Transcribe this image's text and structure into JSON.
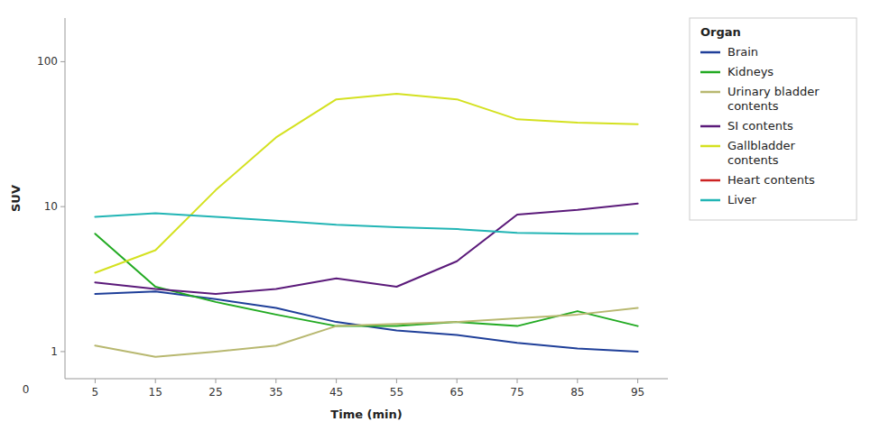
{
  "chart_data": {
    "type": "line",
    "x": [
      5,
      15,
      25,
      35,
      45,
      55,
      65,
      75,
      85,
      95
    ],
    "series": [
      {
        "name": "Brain",
        "color": "#1f3f99",
        "values": [
          2.5,
          2.6,
          2.3,
          2.0,
          1.6,
          1.4,
          1.3,
          1.15,
          1.05,
          1.0
        ]
      },
      {
        "name": "Kidneys",
        "color": "#22aa22",
        "values": [
          6.5,
          2.8,
          2.2,
          1.8,
          1.5,
          1.5,
          1.6,
          1.5,
          1.9,
          1.5
        ]
      },
      {
        "name": "Urinary bladder\ncontents",
        "color": "#b8b870",
        "values": [
          1.1,
          0.92,
          1.0,
          1.1,
          1.5,
          1.55,
          1.6,
          1.7,
          1.8,
          2.0
        ]
      },
      {
        "name": "SI contents",
        "color": "#5b1a7a",
        "values": [
          3.0,
          2.7,
          2.5,
          2.7,
          3.2,
          2.8,
          4.2,
          8.8,
          9.5,
          10.5
        ]
      },
      {
        "name": "Gallbladder\ncontents",
        "color": "#d4e120",
        "values": [
          3.5,
          5.0,
          13.0,
          30.0,
          55.0,
          60.0,
          55.0,
          40.0,
          38.0,
          37.0
        ]
      },
      {
        "name": "Heart contents",
        "color": "#cc2222",
        "values": [
          null,
          null,
          null,
          null,
          null,
          null,
          null,
          null,
          null,
          null
        ]
      },
      {
        "name": "Liver",
        "color": "#22b5b5",
        "values": [
          8.5,
          9.0,
          8.5,
          8.0,
          7.5,
          7.2,
          7.0,
          6.6,
          6.5,
          6.5
        ]
      }
    ],
    "xlabel": "Time (min)",
    "ylabel": "SUV",
    "legend_title": "Organ",
    "legend": "right",
    "log": "y",
    "grid": false,
    "xlim": [
      0,
      100
    ],
    "xticks": [
      5,
      15,
      25,
      35,
      45,
      55,
      65,
      75,
      85,
      95
    ],
    "ylim": [
      0.65,
      200
    ],
    "yticks": [
      1,
      10,
      100
    ],
    "annotations": [
      {
        "text": "0",
        "x": -6.5,
        "y": 0.55
      }
    ]
  }
}
